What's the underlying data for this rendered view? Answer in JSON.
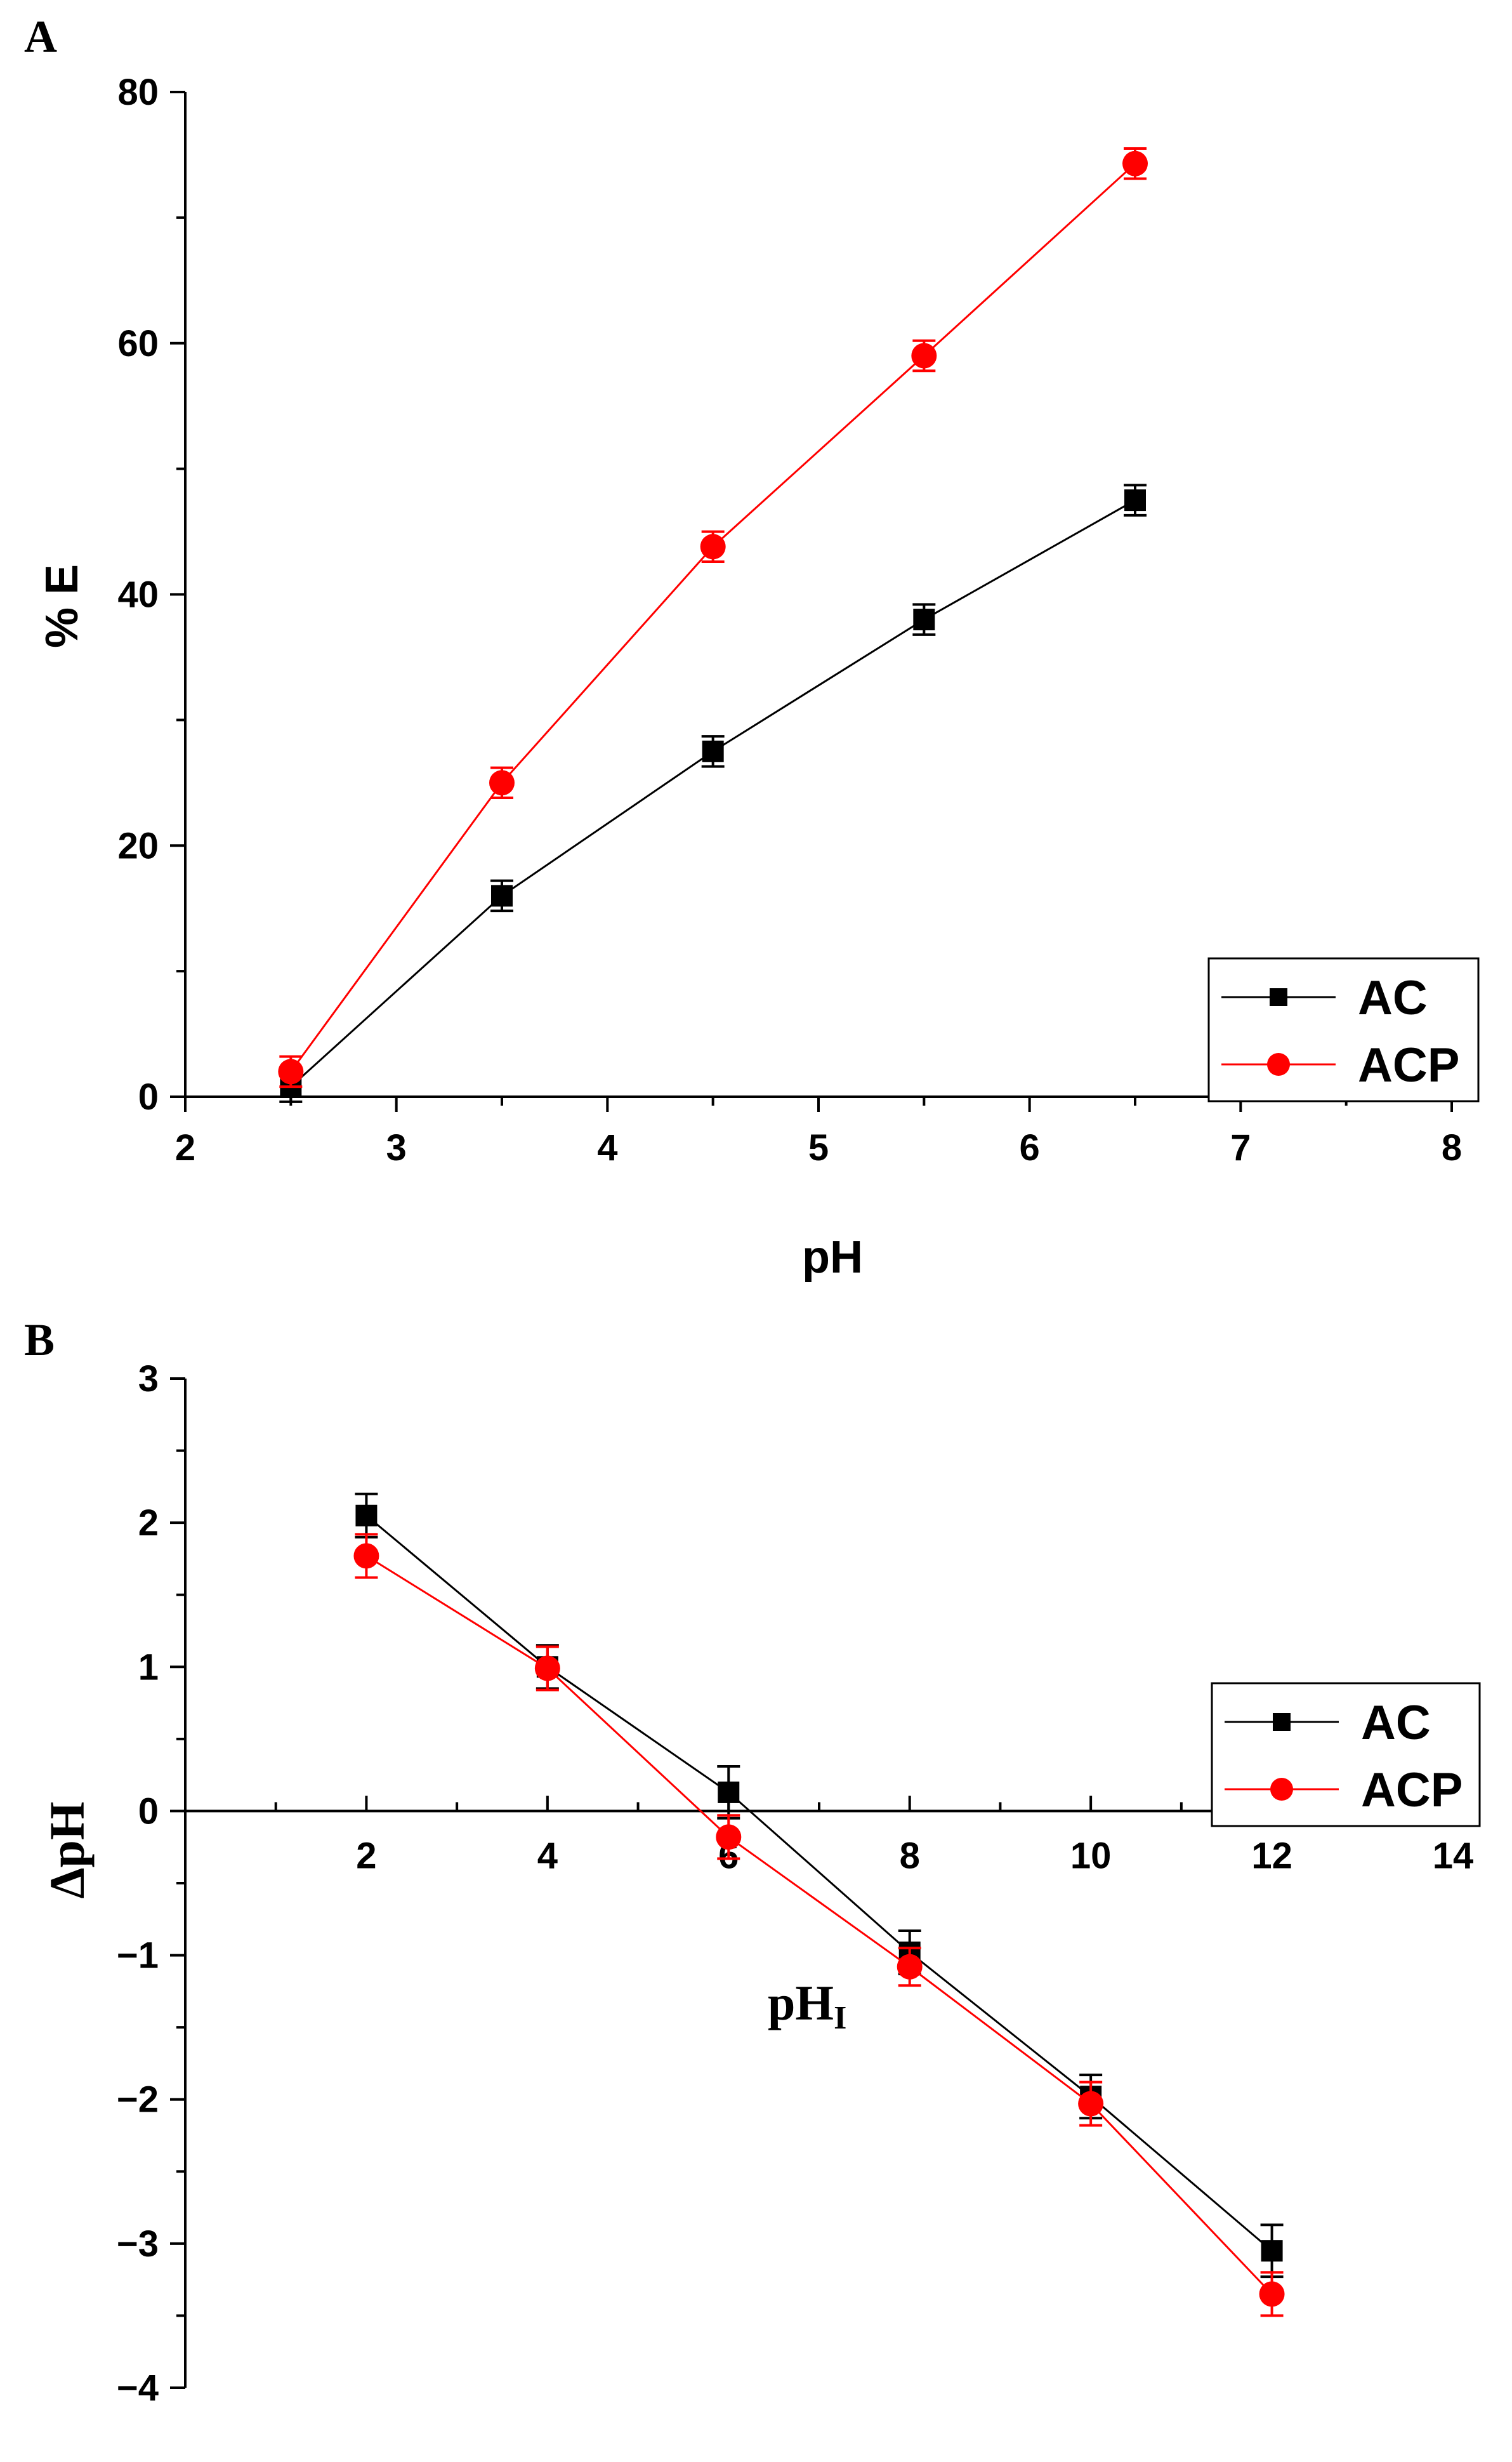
{
  "chart_data": [
    {
      "panel": "A",
      "type": "line",
      "xlabel": "pH",
      "ylabel": "% E",
      "xlim": [
        2,
        8
      ],
      "ylim": [
        0,
        80
      ],
      "xticks": [
        2,
        3,
        4,
        5,
        6,
        7,
        8
      ],
      "yticks": [
        0,
        20,
        40,
        60,
        80
      ],
      "legend_position": "bottom-right",
      "series": [
        {
          "name": "AC",
          "marker": "square",
          "color": "#000000",
          "x": [
            2.5,
            3.5,
            4.5,
            5.5,
            6.5
          ],
          "y": [
            0.8,
            16.0,
            27.5,
            38.0,
            47.5
          ],
          "err": [
            1.2,
            1.2,
            1.2,
            1.2,
            1.2
          ]
        },
        {
          "name": "ACP",
          "marker": "circle",
          "color": "#ff0000",
          "x": [
            2.5,
            3.5,
            4.5,
            5.5,
            6.5
          ],
          "y": [
            2.0,
            25.0,
            43.8,
            59.0,
            74.3
          ],
          "err": [
            1.2,
            1.2,
            1.2,
            1.2,
            1.2
          ]
        }
      ]
    },
    {
      "panel": "B",
      "type": "line",
      "xlabel_main": "pH",
      "xlabel_sub": "I",
      "ylabel": "ΔpH",
      "xlim": [
        0,
        14
      ],
      "ylim": [
        -4,
        3
      ],
      "xticks": [
        2,
        4,
        6,
        8,
        10,
        12,
        14
      ],
      "yticks": [
        -4,
        -3,
        -2,
        -1,
        0,
        1,
        2,
        3
      ],
      "ytick_labels": [
        "−4",
        "−3",
        "−2",
        "−1",
        "0",
        "1",
        "2",
        "3"
      ],
      "legend_position": "right",
      "series": [
        {
          "name": "AC",
          "marker": "square",
          "color": "#000000",
          "x": [
            2,
            4,
            6,
            8,
            10,
            12
          ],
          "y": [
            2.05,
            1.0,
            0.13,
            -0.98,
            -1.98,
            -3.05
          ],
          "err": [
            0.15,
            0.15,
            0.18,
            0.15,
            0.15,
            0.18
          ]
        },
        {
          "name": "ACP",
          "marker": "circle",
          "color": "#ff0000",
          "x": [
            2,
            4,
            6,
            8,
            10,
            12
          ],
          "y": [
            1.77,
            0.99,
            -0.18,
            -1.08,
            -2.03,
            -3.35
          ],
          "err": [
            0.15,
            0.15,
            0.15,
            0.13,
            0.15,
            0.15
          ]
        }
      ]
    }
  ]
}
